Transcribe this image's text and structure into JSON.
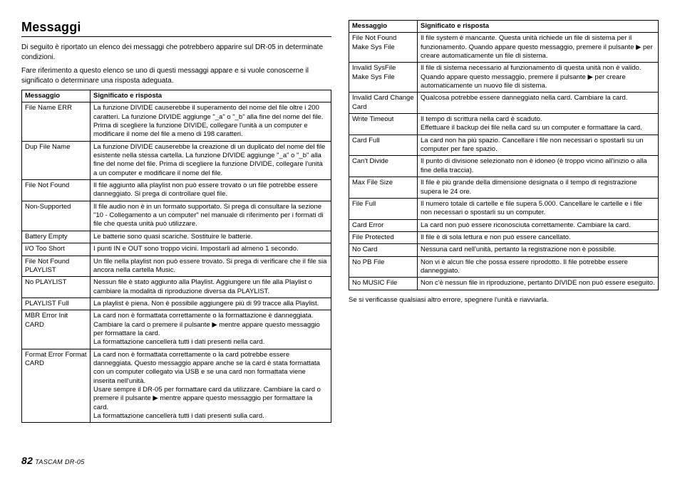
{
  "heading": "Messaggi",
  "intro1": "Di seguito è riportato un elenco dei messaggi che potrebbero apparire sul DR-05 in determinate condizioni.",
  "intro2": "Fare riferimento a questo elenco se uno di questi messaggi appare e si vuole conoscerne il significato o determinare una risposta adeguata.",
  "th_msg": "Messaggio",
  "th_resp": "Significato e risposta",
  "left_table": [
    {
      "msg": "File Name ERR",
      "resp": "La funzione DIVIDE causerebbe il superamento del nome del file oltre i 200 caratteri. La funzione DIVIDE aggiunge \"_a\" o \"_b\" alla fine del nome del file. Prima di scegliere la funzione DIVIDE, collegare l'unità a un computer e modificare il nome del file a meno di 198 caratteri."
    },
    {
      "msg": "Dup File Name",
      "resp": "La funzione DIVIDE causerebbe la creazione di un duplicato del nome del file esistente nella stessa cartella. La funzione DIVIDE aggiunge \"_a\" o \"_b\" alla fine del nome del file. Prima di scegliere la funzione DIVIDE, collegare l'unità a un computer e modificare il nome del file."
    },
    {
      "msg": "File Not Found",
      "resp": "Il file aggiunto alla playlist non può essere trovato o un file potrebbe essere danneggiato. Si prega di controllare quel file."
    },
    {
      "msg": "Non-Supported",
      "resp": "Il file audio non è in un formato supportato. Si prega di consultare la sezione \"10 - Collegamento a un computer\" nel manuale di riferimento per i formati di file che questa unità può utilizzare."
    },
    {
      "msg": "Battery Empty",
      "resp": "Le batterie sono quasi scariche. Sostituire le batterie."
    },
    {
      "msg": "I/O Too Short",
      "resp": "I punti IN e OUT sono troppo vicini. Impostarli ad almeno 1 secondo."
    },
    {
      "msg": "File Not Found PLAYLIST",
      "resp": "Un file nella playlist non può essere trovato. Si prega di verificare che il file sia ancora nella cartella Music."
    },
    {
      "msg": "No PLAYLIST",
      "resp": "Nessun file è stato aggiunto alla Playlist. Aggiungere un file alla Playlist o cambiare la modalità di riproduzione diversa da PLAYLIST."
    },
    {
      "msg": "PLAYLIST Full",
      "resp": "La playlist è piena. Non è possibile aggiungere più di 99 tracce alla Playlist."
    },
    {
      "msg": "MBR Error Init CARD",
      "resp": "La card non è formattata correttamente o la formattazione è danneggiata. Cambiare la card o premere il pulsante ▶ mentre appare questo messaggio per formattare la card.\nLa formattazione cancellerà tutti i dati presenti nella card."
    },
    {
      "msg": "Format Error Format CARD",
      "resp": "La card non è formattata correttamente o la card potrebbe essere danneggiata. Questo messaggio appare anche se la card è stata formattata con un computer collegato via USB e se una card non formattata viene inserita nell'unità.\nUsare sempre il DR-05 per formattare card da utilizzare. Cambiare la card o premere il pulsante ▶ mentre appare questo messaggio per formattare la card.\nLa formattazione cancellerà tutti i dati presenti sulla card."
    }
  ],
  "right_table": [
    {
      "msg": "File Not Found Make Sys File",
      "resp": "Il file system è mancante. Questa unità richiede un file di sistema per il funzionamento. Quando appare questo messaggio, premere il pulsante ▶ per creare automaticamente un file di sistema."
    },
    {
      "msg": "Invalid SysFile Make Sys File",
      "resp": "Il file di sistema necessario al funzionamento di questa unità non è valido. Quando appare questo messaggio, premere il pulsante ▶ per creare automaticamente un nuovo file di sistema."
    },
    {
      "msg": "Invalid Card Change Card",
      "resp": "Qualcosa potrebbe essere danneggiato nella card. Cambiare la card."
    },
    {
      "msg": "Write Timeout",
      "resp": "Il tempo di scrittura nella card è scaduto.\nEffettuare il backup dei file nella card su un computer e formattare la card."
    },
    {
      "msg": "Card Full",
      "resp": "La card non ha più spazio. Cancellare i file non necessari o spostarli su un computer per fare spazio."
    },
    {
      "msg": "Can't Divide",
      "resp": "Il punto di divisione selezionato non è idoneo (è troppo vicino all'inizio o alla fine della traccia)."
    },
    {
      "msg": "Max File Size",
      "resp": "Il file è più grande della dimensione designata o il tempo di registrazione supera le 24 ore."
    },
    {
      "msg": "File Full",
      "resp": "Il numero totale di cartelle e file supera 5.000. Cancellare le cartelle e i file non necessari o spostarli su un computer."
    },
    {
      "msg": "Card Error",
      "resp": "La card non può essere riconosciuta correttamente. Cambiare la card."
    },
    {
      "msg": "File Protected",
      "resp": "Il file è di sola lettura e non può essere cancellato."
    },
    {
      "msg": "No Card",
      "resp": "Nessuna card nell'unità, pertanto la registrazione non è possibile."
    },
    {
      "msg": "No PB File",
      "resp": "Non vi è alcun file che possa essere riprodotto. Il file potrebbe essere danneggiato."
    },
    {
      "msg": "No MUSIC File",
      "resp": "Non c'è nessun file in riproduzione, pertanto DIVIDE non può essere eseguito."
    }
  ],
  "footnote": "Se si verificasse qualsiasi altro errore, spegnere l'unità e riavviarla.",
  "page_number": "82",
  "brand": "TASCAM",
  "model": "DR-05"
}
